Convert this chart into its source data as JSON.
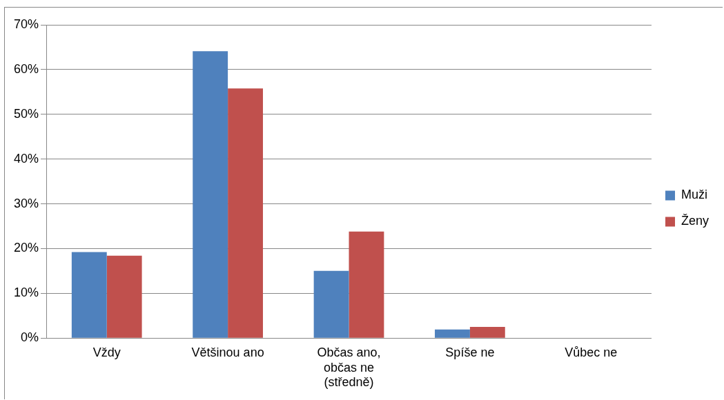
{
  "chart_data": {
    "type": "bar",
    "categories": [
      "Vždy",
      "Většinou ano",
      "Občas ano, občas ne (středně)",
      "Spíše ne",
      "Vůbec ne"
    ],
    "series": [
      {
        "name": "Muži",
        "color": "#4f81bd",
        "values": [
          19.2,
          64.1,
          15.0,
          1.9,
          0
        ]
      },
      {
        "name": "Ženy",
        "color": "#c0504d",
        "values": [
          18.4,
          55.8,
          23.8,
          2.5,
          0
        ]
      }
    ],
    "ylim": [
      0,
      70
    ],
    "yticks": [
      {
        "value": 0,
        "label": "0%"
      },
      {
        "value": 10,
        "label": "10%"
      },
      {
        "value": 20,
        "label": "20%"
      },
      {
        "value": 30,
        "label": "30%"
      },
      {
        "value": 40,
        "label": "40%"
      },
      {
        "value": 50,
        "label": "50%"
      },
      {
        "value": 60,
        "label": "60%"
      },
      {
        "value": 70,
        "label": "70%"
      }
    ],
    "grid": "y",
    "legend": "right"
  }
}
